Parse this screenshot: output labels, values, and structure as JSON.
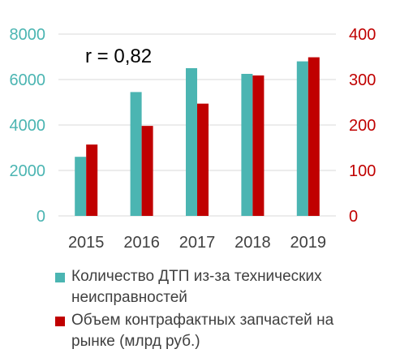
{
  "chart_data": {
    "type": "bar",
    "title": "",
    "annotation": "r = 0,82",
    "categories": [
      "2015",
      "2016",
      "2017",
      "2018",
      "2019"
    ],
    "series": [
      {
        "name": "Количество ДТП из-за технических неисправностей",
        "axis": "left",
        "color": "#4BB5B2",
        "values": [
          2600,
          5450,
          6500,
          6250,
          6800
        ]
      },
      {
        "name": "Объем контрафактных запчастей на рынке (млрд руб.)",
        "axis": "right",
        "color": "#C00000",
        "values": [
          157,
          198,
          247,
          309,
          349
        ]
      }
    ],
    "y_left": {
      "ylim": [
        0,
        8000
      ],
      "ticks": [
        "0",
        "2000",
        "4000",
        "6000",
        "8000"
      ],
      "color": "#4BB5B2"
    },
    "y_right": {
      "ylim": [
        0,
        400
      ],
      "ticks": [
        "0",
        "100",
        "200",
        "300",
        "400"
      ],
      "color": "#C00000"
    },
    "grid": true,
    "legend_position": "bottom"
  }
}
